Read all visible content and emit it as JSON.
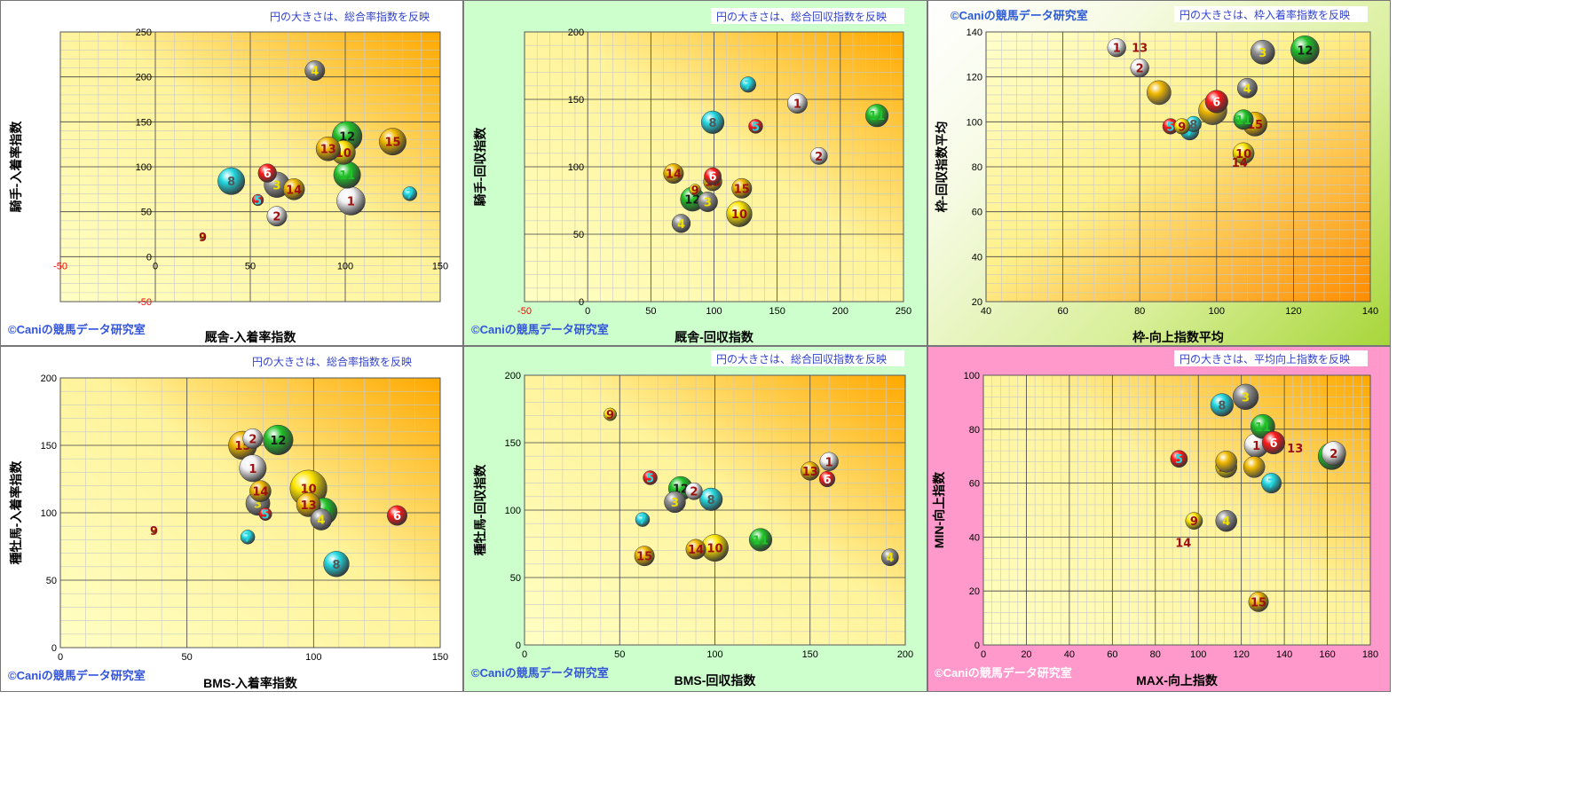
{
  "copyright": "©Caniの競馬データ研究室",
  "panel_colors": {
    "white": "#ffffff",
    "green": "#ccffcc",
    "lime": "#a8d63a",
    "pink": "#ff99cc"
  },
  "horse_colors": {
    "1": "#f2f2f2",
    "2": "#f2f2f2",
    "3": "#909090",
    "4": "#909090",
    "5": "#ff1a1a",
    "6": "#ff1a1a",
    "7": "#22d8e0",
    "8": "#22d8e0",
    "9": "#ffe600",
    "10": "#ffe600",
    "11": "#22c22a",
    "12": "#22c22a",
    "13": "#f0b800",
    "14": "#f0b800",
    "15": "#f0b800"
  },
  "chart_data": [
    {
      "type": "scatter",
      "note": "円の大きさは、総合率指数を反映",
      "xlabel": "厩舎-入着率指数",
      "ylabel": "騎手-入着率指数",
      "xlim": [
        -50,
        150
      ],
      "ylim": [
        -50,
        250
      ],
      "xticks": [
        -50,
        0,
        50,
        100,
        150
      ],
      "yticks": [
        -50,
        0,
        50,
        100,
        150,
        200,
        250
      ],
      "points": [
        {
          "id": "1",
          "x": 103,
          "y": 62,
          "s": 1.0
        },
        {
          "id": "2",
          "x": 64,
          "y": 45,
          "s": 0.7
        },
        {
          "id": "3",
          "x": 64,
          "y": 80,
          "s": 0.9
        },
        {
          "id": "4",
          "x": 84,
          "y": 207,
          "s": 0.7
        },
        {
          "id": "5",
          "x": 54,
          "y": 63,
          "s": 0.4
        },
        {
          "id": "6",
          "x": 59,
          "y": 93,
          "s": 0.65
        },
        {
          "id": "7",
          "x": 134,
          "y": 70,
          "s": 0.5
        },
        {
          "id": "8",
          "x": 40,
          "y": 84,
          "s": 0.95
        },
        {
          "id": "9",
          "x": 25,
          "y": 22,
          "s": 0.2
        },
        {
          "id": "10",
          "x": 99,
          "y": 116,
          "s": 0.85
        },
        {
          "id": "11",
          "x": 101,
          "y": 91,
          "s": 0.95
        },
        {
          "id": "12",
          "x": 101,
          "y": 134,
          "s": 1.05
        },
        {
          "id": "13",
          "x": 91,
          "y": 120,
          "s": 0.85
        },
        {
          "id": "14",
          "x": 73,
          "y": 75,
          "s": 0.75
        },
        {
          "id": "15",
          "x": 125,
          "y": 128,
          "s": 0.95
        }
      ]
    },
    {
      "type": "scatter",
      "note": "円の大きさは、総合回収指数を反映",
      "xlabel": "厩舎-回収指数",
      "ylabel": "騎手-回収指数",
      "xlim": [
        -50,
        250
      ],
      "ylim": [
        0,
        200
      ],
      "xticks": [
        -50,
        0,
        50,
        100,
        150,
        200,
        250
      ],
      "yticks": [
        0,
        50,
        100,
        150,
        200
      ],
      "points": [
        {
          "id": "1",
          "x": 166,
          "y": 147,
          "s": 0.7
        },
        {
          "id": "2",
          "x": 183,
          "y": 108,
          "s": 0.6
        },
        {
          "id": "3",
          "x": 95,
          "y": 74,
          "s": 0.7
        },
        {
          "id": "4",
          "x": 74,
          "y": 58,
          "s": 0.65
        },
        {
          "id": "5",
          "x": 133,
          "y": 130,
          "s": 0.5
        },
        {
          "id": "6",
          "x": 99,
          "y": 93,
          "s": 0.6
        },
        {
          "id": "7",
          "x": 127,
          "y": 161,
          "s": 0.55
        },
        {
          "id": "8",
          "x": 99,
          "y": 133,
          "s": 0.8
        },
        {
          "id": "9",
          "x": 85,
          "y": 83,
          "s": 0.4
        },
        {
          "id": "10",
          "x": 120,
          "y": 65,
          "s": 0.9
        },
        {
          "id": "11",
          "x": 229,
          "y": 138,
          "s": 0.8
        },
        {
          "id": "12",
          "x": 83,
          "y": 76,
          "s": 0.85
        },
        {
          "id": "13",
          "x": 99,
          "y": 89,
          "s": 0.65
        },
        {
          "id": "14",
          "x": 68,
          "y": 95,
          "s": 0.7
        },
        {
          "id": "15",
          "x": 122,
          "y": 84,
          "s": 0.7
        }
      ]
    },
    {
      "type": "scatter",
      "note": "円の大きさは、枠入着率指数を反映",
      "xlabel": "枠-向上指数平均",
      "ylabel": "枠-回収指数平均",
      "xlim": [
        40,
        140
      ],
      "ylim": [
        20,
        140
      ],
      "xticks": [
        40,
        60,
        80,
        100,
        120,
        140
      ],
      "yticks": [
        20,
        40,
        60,
        80,
        100,
        120,
        140
      ],
      "points": [
        {
          "id": "1",
          "x": 74,
          "y": 133,
          "s": 0.65
        },
        {
          "id": "2",
          "x": 80,
          "y": 124,
          "s": 0.65
        },
        {
          "id": "3",
          "x": 112,
          "y": 131,
          "s": 0.85
        },
        {
          "id": "4",
          "x": 108,
          "y": 115,
          "s": 0.7
        },
        {
          "id": "5",
          "x": 88,
          "y": 98,
          "s": 0.55
        },
        {
          "id": "6",
          "x": 100,
          "y": 109,
          "s": 0.8
        },
        {
          "id": "7",
          "x": 93,
          "y": 96,
          "s": 0.65
        },
        {
          "id": "8",
          "x": 94,
          "y": 99,
          "s": 0.55
        },
        {
          "id": "9",
          "x": 91,
          "y": 98,
          "s": 0.55
        },
        {
          "id": "10",
          "x": 107,
          "y": 86,
          "s": 0.75
        },
        {
          "id": "11",
          "x": 107,
          "y": 101,
          "s": 0.7
        },
        {
          "id": "12",
          "x": 123,
          "y": 132,
          "s": 1.0
        },
        {
          "id": "13",
          "x": 80,
          "y": 133,
          "s": 0.0
        },
        {
          "id": "14",
          "x": 106,
          "y": 82,
          "s": 0.0
        },
        {
          "id": "15",
          "x": 110,
          "y": 99,
          "s": 0.85
        },
        {
          "id": "",
          "x": 85,
          "y": 113,
          "s": 0.85
        },
        {
          "id": "",
          "x": 99,
          "y": 105,
          "s": 1.0
        }
      ]
    },
    {
      "type": "scatter",
      "note": "円の大きさは、総合率指数を反映",
      "xlabel": "BMS-入着率指数",
      "ylabel": "種牡馬-入着率指数",
      "xlim": [
        0,
        150
      ],
      "ylim": [
        0,
        200
      ],
      "xticks": [
        0,
        50,
        100,
        150
      ],
      "yticks": [
        0,
        50,
        100,
        150,
        200
      ],
      "points": [
        {
          "id": "1",
          "x": 76,
          "y": 133,
          "s": 0.95
        },
        {
          "id": "2",
          "x": 76,
          "y": 155,
          "s": 0.7
        },
        {
          "id": "3",
          "x": 78,
          "y": 107,
          "s": 0.85
        },
        {
          "id": "4",
          "x": 103,
          "y": 95,
          "s": 0.75
        },
        {
          "id": "5",
          "x": 81,
          "y": 99,
          "s": 0.45
        },
        {
          "id": "6",
          "x": 133,
          "y": 98,
          "s": 0.7
        },
        {
          "id": "7",
          "x": 74,
          "y": 82,
          "s": 0.5
        },
        {
          "id": "8",
          "x": 109,
          "y": 62,
          "s": 0.9
        },
        {
          "id": "9",
          "x": 37,
          "y": 87,
          "s": 0.2
        },
        {
          "id": "10",
          "x": 98,
          "y": 118,
          "s": 1.3
        },
        {
          "id": "11",
          "x": 104,
          "y": 101,
          "s": 0.95
        },
        {
          "id": "12",
          "x": 86,
          "y": 154,
          "s": 1.05
        },
        {
          "id": "13",
          "x": 98,
          "y": 106,
          "s": 0.85
        },
        {
          "id": "14",
          "x": 79,
          "y": 116,
          "s": 0.75
        },
        {
          "id": "15",
          "x": 72,
          "y": 150,
          "s": 1.0
        }
      ]
    },
    {
      "type": "scatter",
      "note": "円の大きさは、総合回収指数を反映",
      "xlabel": "BMS-回収指数",
      "ylabel": "種牡馬-回収指数",
      "xlim": [
        0,
        200
      ],
      "ylim": [
        0,
        200
      ],
      "xticks": [
        0,
        50,
        100,
        150,
        200
      ],
      "yticks": [
        0,
        50,
        100,
        150,
        200
      ],
      "points": [
        {
          "id": "1",
          "x": 160,
          "y": 136,
          "s": 0.65
        },
        {
          "id": "2",
          "x": 89,
          "y": 114,
          "s": 0.6
        },
        {
          "id": "3",
          "x": 79,
          "y": 106,
          "s": 0.75
        },
        {
          "id": "4",
          "x": 192,
          "y": 65,
          "s": 0.6
        },
        {
          "id": "5",
          "x": 66,
          "y": 124,
          "s": 0.5
        },
        {
          "id": "6",
          "x": 159,
          "y": 123,
          "s": 0.55
        },
        {
          "id": "7",
          "x": 62,
          "y": 93,
          "s": 0.5
        },
        {
          "id": "8",
          "x": 98,
          "y": 108,
          "s": 0.8
        },
        {
          "id": "9",
          "x": 45,
          "y": 171,
          "s": 0.45
        },
        {
          "id": "10",
          "x": 100,
          "y": 72,
          "s": 0.95
        },
        {
          "id": "11",
          "x": 124,
          "y": 78,
          "s": 0.8
        },
        {
          "id": "12",
          "x": 82,
          "y": 116,
          "s": 0.85
        },
        {
          "id": "13",
          "x": 150,
          "y": 129,
          "s": 0.65
        },
        {
          "id": "14",
          "x": 90,
          "y": 71,
          "s": 0.7
        },
        {
          "id": "15",
          "x": 63,
          "y": 66,
          "s": 0.7
        }
      ]
    },
    {
      "type": "scatter",
      "note": "円の大きさは、平均向上指数を反映",
      "xlabel": "MAX-向上指数",
      "ylabel": "MIN-向上指数",
      "xlim": [
        0,
        180
      ],
      "ylim": [
        0,
        100
      ],
      "xticks": [
        0,
        20,
        40,
        60,
        80,
        100,
        120,
        140,
        160,
        180
      ],
      "yticks": [
        0,
        20,
        40,
        60,
        80,
        100
      ],
      "points": [
        {
          "id": "1",
          "x": 127,
          "y": 74,
          "s": 0.85
        },
        {
          "id": "2",
          "x": 163,
          "y": 71,
          "s": 0.85
        },
        {
          "id": "3",
          "x": 122,
          "y": 92,
          "s": 0.9
        },
        {
          "id": "4",
          "x": 113,
          "y": 46,
          "s": 0.75
        },
        {
          "id": "5",
          "x": 91,
          "y": 69,
          "s": 0.6
        },
        {
          "id": "6",
          "x": 135,
          "y": 75,
          "s": 0.8
        },
        {
          "id": "7",
          "x": 134,
          "y": 60,
          "s": 0.7
        },
        {
          "id": "8",
          "x": 111,
          "y": 89,
          "s": 0.8
        },
        {
          "id": "9",
          "x": 98,
          "y": 46,
          "s": 0.6
        },
        {
          "id": "10",
          "x": 113,
          "y": 66,
          "s": 0.75
        },
        {
          "id": "11",
          "x": 130,
          "y": 81,
          "s": 0.85
        },
        {
          "id": "12",
          "x": 162,
          "y": 70,
          "s": 0.95
        },
        {
          "id": "13",
          "x": 145,
          "y": 73,
          "s": 0.0
        },
        {
          "id": "14",
          "x": 93,
          "y": 38,
          "s": 0.0
        },
        {
          "id": "15",
          "x": 128,
          "y": 16,
          "s": 0.7
        },
        {
          "id": "",
          "x": 113,
          "y": 68,
          "s": 0.75
        },
        {
          "id": "",
          "x": 126,
          "y": 66,
          "s": 0.75
        }
      ]
    }
  ]
}
